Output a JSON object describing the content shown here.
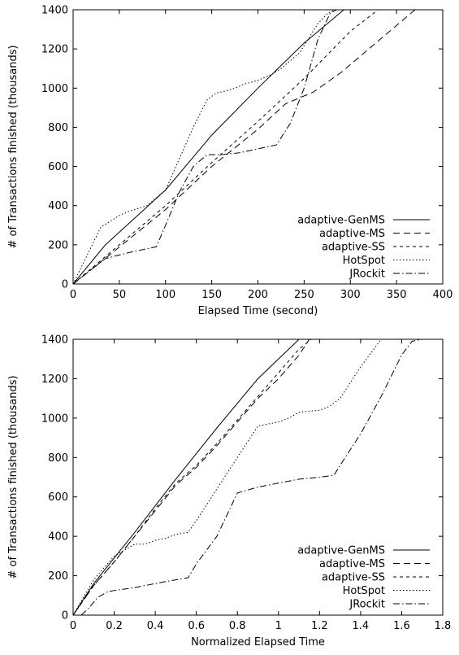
{
  "chart_data": [
    {
      "type": "line",
      "title": "",
      "xlabel": "Elapsed Time (second)",
      "ylabel": "# of Transactions finished (thousands)",
      "xlim": [
        0,
        400
      ],
      "ylim": [
        0,
        1400
      ],
      "xticks": [
        "0",
        "50",
        "100",
        "150",
        "200",
        "250",
        "300",
        "350",
        "400"
      ],
      "yticks": [
        "0",
        "200",
        "400",
        "600",
        "800",
        "1000",
        "1200",
        "1400"
      ],
      "grid": false,
      "legend_position": "bottom-right",
      "series": [
        {
          "name": "adaptive-GenMS",
          "dash": "",
          "x": [
            0,
            35,
            100,
            150,
            200,
            250,
            293
          ],
          "y": [
            0,
            200,
            480,
            760,
            1000,
            1230,
            1400
          ]
        },
        {
          "name": "adaptive-MS",
          "dash": "8,5",
          "x": [
            0,
            40,
            100,
            150,
            200,
            230,
            260,
            290,
            330,
            370
          ],
          "y": [
            0,
            150,
            380,
            600,
            790,
            920,
            980,
            1080,
            1240,
            1400
          ]
        },
        {
          "name": "adaptive-SS",
          "dash": "4,4",
          "x": [
            0,
            40,
            100,
            150,
            200,
            250,
            300,
            330
          ],
          "y": [
            0,
            160,
            400,
            620,
            830,
            1050,
            1290,
            1400
          ]
        },
        {
          "name": "HotSpot",
          "dash": "1.5,2.5",
          "x": [
            0,
            30,
            40,
            50,
            60,
            80,
            100,
            130,
            145,
            155,
            165,
            175,
            185,
            200,
            215,
            225,
            245,
            265,
            275,
            283
          ],
          "y": [
            0,
            290,
            320,
            350,
            370,
            400,
            480,
            800,
            940,
            975,
            985,
            1000,
            1020,
            1040,
            1070,
            1100,
            1180,
            1330,
            1380,
            1400
          ]
        },
        {
          "name": "JRockit",
          "dash": "8,3,1.5,3",
          "x": [
            0,
            35,
            60,
            90,
            100,
            115,
            130,
            145,
            160,
            180,
            200,
            220,
            235,
            250,
            265,
            278,
            285
          ],
          "y": [
            0,
            130,
            160,
            190,
            300,
            470,
            600,
            660,
            660,
            670,
            690,
            710,
            820,
            1000,
            1250,
            1380,
            1400
          ]
        }
      ]
    },
    {
      "type": "line",
      "title": "",
      "xlabel": "Normalized Elapsed Time",
      "ylabel": "# of Transactions finished (thousands)",
      "xlim": [
        0,
        1.8
      ],
      "ylim": [
        0,
        1400
      ],
      "xticks": [
        "0",
        "0.2",
        "0.4",
        "0.6",
        "0.8",
        "1",
        "1.2",
        "1.4",
        "1.6",
        "1.8"
      ],
      "yticks": [
        "0",
        "200",
        "400",
        "600",
        "800",
        "1000",
        "1200",
        "1400"
      ],
      "grid": false,
      "legend_position": "bottom-right",
      "series": [
        {
          "name": "adaptive-GenMS",
          "dash": "",
          "x": [
            0,
            0.1,
            0.3,
            0.5,
            0.7,
            0.9,
            1.1,
            1.16
          ],
          "y": [
            0,
            160,
            420,
            690,
            950,
            1200,
            1400,
            1400
          ]
        },
        {
          "name": "adaptive-MS",
          "dash": "8,5",
          "x": [
            0,
            0.1,
            0.2,
            0.3,
            0.4,
            0.5,
            0.6,
            0.7,
            0.8,
            0.9,
            1.0,
            1.1,
            1.15
          ],
          "y": [
            0,
            150,
            270,
            400,
            530,
            660,
            750,
            860,
            980,
            1100,
            1200,
            1320,
            1400
          ]
        },
        {
          "name": "adaptive-SS",
          "dash": "4,4",
          "x": [
            0,
            0.1,
            0.2,
            0.3,
            0.4,
            0.5,
            0.6,
            0.7,
            0.8,
            0.9,
            1.0,
            1.1,
            1.16
          ],
          "y": [
            0,
            150,
            270,
            400,
            540,
            670,
            760,
            870,
            990,
            1110,
            1230,
            1350,
            1400
          ]
        },
        {
          "name": "HotSpot",
          "dash": "1.5,2.5",
          "x": [
            0,
            0.1,
            0.2,
            0.3,
            0.35,
            0.4,
            0.45,
            0.5,
            0.56,
            0.6,
            0.7,
            0.8,
            0.9,
            1.0,
            1.05,
            1.1,
            1.2,
            1.25,
            1.3,
            1.4,
            1.5,
            1.55
          ],
          "y": [
            0,
            180,
            300,
            360,
            360,
            380,
            390,
            410,
            420,
            480,
            640,
            800,
            960,
            980,
            1000,
            1030,
            1040,
            1060,
            1100,
            1260,
            1400,
            1400
          ]
        },
        {
          "name": "JRockit",
          "dash": "8,3,1.5,3",
          "x": [
            0.04,
            0.08,
            0.12,
            0.17,
            0.3,
            0.45,
            0.56,
            0.6,
            0.7,
            0.75,
            0.8,
            0.9,
            1.0,
            1.1,
            1.2,
            1.27,
            1.3,
            1.4,
            1.5,
            1.6,
            1.65,
            1.7,
            1.75
          ],
          "y": [
            0,
            40,
            90,
            120,
            140,
            170,
            190,
            260,
            400,
            510,
            620,
            650,
            670,
            690,
            700,
            710,
            760,
            920,
            1110,
            1320,
            1390,
            1400,
            1400
          ]
        }
      ]
    }
  ]
}
